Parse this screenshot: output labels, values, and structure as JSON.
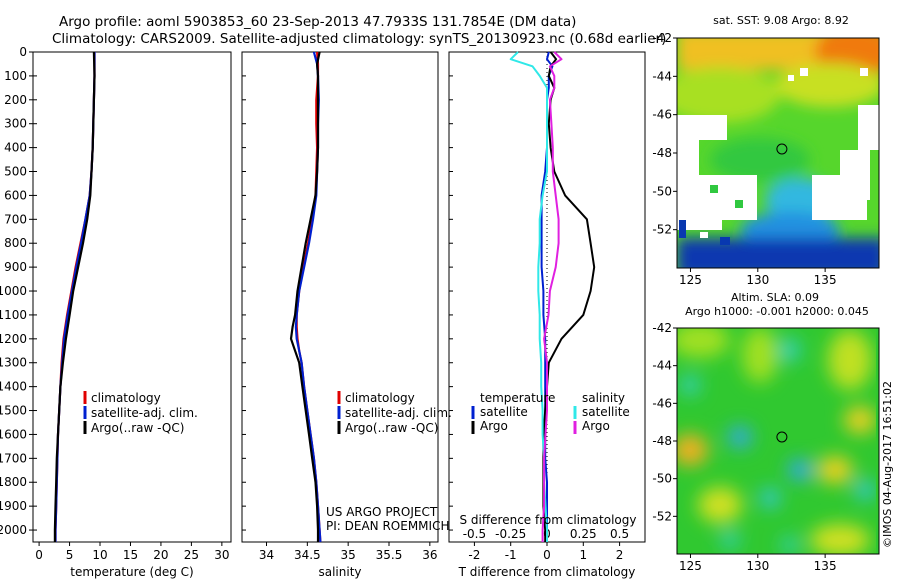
{
  "header": {
    "title_line1": "Argo profile: aoml 5903853_60 23-Sep-2013 47.7933S 131.7854E (DM data)",
    "title_line2": "Climatology: CARS2009. Satellite-adjusted climatology: synTS_20130923.nc (0.68d earlier)"
  },
  "colors": {
    "climatology": "#e00000",
    "satellite": "#0020d0",
    "argo": "#000000",
    "salinity_satellite": "#30e8e8",
    "salinity_argo": "#e020e0"
  },
  "credits": {
    "project": "US ARGO PROJECT",
    "pi": "PI: DEAN ROEMMICH",
    "stamp": "©IMOS 04-Aug-2017 16:51:02"
  },
  "legend": {
    "climatology": "climatology",
    "satellite_adj": "satellite-adj. clim.",
    "argo_raw": "Argo(..raw -QC)",
    "diff_temperature": "temperature",
    "diff_salinity": "salinity",
    "satellite": "satellite",
    "argo": "Argo"
  },
  "chart_data": [
    {
      "type": "line",
      "id": "temperature",
      "xlabel": "temperature (deg C)",
      "ylabel": "",
      "xlim": [
        -1,
        31.5
      ],
      "ylim": [
        2050,
        0
      ],
      "xticks": [
        0,
        5,
        10,
        15,
        20,
        25,
        30
      ],
      "yticks": [
        0,
        100,
        200,
        300,
        400,
        500,
        600,
        700,
        800,
        900,
        1000,
        1100,
        1200,
        1300,
        1400,
        1500,
        1600,
        1700,
        1800,
        1900,
        2000
      ],
      "depth": [
        0,
        100,
        200,
        300,
        400,
        500,
        600,
        700,
        800,
        900,
        1000,
        1100,
        1200,
        1300,
        1400,
        1500,
        1600,
        1700,
        1800,
        1900,
        2000,
        2050
      ],
      "series": [
        {
          "name": "climatology",
          "values": [
            9.1,
            9.1,
            9.0,
            8.9,
            8.8,
            8.6,
            8.3,
            7.6,
            6.8,
            6.0,
            5.3,
            4.6,
            4.0,
            3.7,
            3.5,
            3.3,
            3.1,
            3.0,
            2.9,
            2.8,
            2.7,
            2.7
          ]
        },
        {
          "name": "satellite-adj. clim.",
          "values": [
            9.1,
            9.1,
            9.0,
            8.9,
            8.8,
            8.6,
            8.3,
            7.6,
            6.9,
            6.1,
            5.4,
            4.7,
            4.1,
            3.8,
            3.5,
            3.3,
            3.1,
            3.0,
            2.9,
            2.8,
            2.7,
            2.7
          ]
        },
        {
          "name": "Argo(..raw -QC)",
          "values": [
            9.0,
            9.1,
            9.0,
            8.9,
            8.8,
            8.6,
            8.4,
            7.9,
            7.2,
            6.4,
            5.6,
            5.0,
            4.4,
            3.9,
            3.5,
            3.3,
            3.1,
            2.9,
            2.8,
            2.7,
            2.6,
            2.6
          ]
        }
      ]
    },
    {
      "type": "line",
      "id": "salinity",
      "xlabel": "salinity",
      "ylabel": "",
      "xlim": [
        33.7,
        36.1
      ],
      "ylim": [
        2050,
        0
      ],
      "xticks": [
        34,
        34.5,
        35,
        35.5,
        36
      ],
      "depth": [
        0,
        50,
        100,
        200,
        300,
        400,
        500,
        600,
        700,
        800,
        900,
        1000,
        1100,
        1150,
        1200,
        1250,
        1300,
        1400,
        1500,
        1600,
        1700,
        1800,
        1900,
        2000,
        2050
      ],
      "series": [
        {
          "name": "climatology",
          "values": [
            34.62,
            34.63,
            34.63,
            34.61,
            34.61,
            34.62,
            34.61,
            34.6,
            34.56,
            34.51,
            34.45,
            34.4,
            34.37,
            34.37,
            34.38,
            34.4,
            34.43,
            34.46,
            34.5,
            34.54,
            34.58,
            34.61,
            34.63,
            34.65,
            34.66
          ]
        },
        {
          "name": "satellite-adj. clim.",
          "values": [
            34.58,
            34.62,
            34.63,
            34.64,
            34.63,
            34.63,
            34.62,
            34.61,
            34.57,
            34.52,
            34.46,
            34.4,
            34.37,
            34.36,
            34.37,
            34.4,
            34.43,
            34.46,
            34.5,
            34.54,
            34.58,
            34.61,
            34.63,
            34.65,
            34.66
          ]
        },
        {
          "name": "Argo(..raw -QC)",
          "values": [
            34.65,
            34.62,
            34.63,
            34.63,
            34.63,
            34.63,
            34.62,
            34.6,
            34.54,
            34.48,
            34.43,
            34.38,
            34.35,
            34.32,
            34.3,
            34.35,
            34.4,
            34.44,
            34.48,
            34.52,
            34.56,
            34.6,
            34.62,
            34.63,
            34.63
          ]
        }
      ]
    },
    {
      "type": "line",
      "id": "difference",
      "xlabel": "T difference from climatology",
      "xlabel_top": "S difference from climatology",
      "ylabel": "",
      "xlim": [
        -2.7,
        2.7
      ],
      "ylim": [
        2050,
        0
      ],
      "xticks": [
        -2,
        -1,
        0,
        1,
        2
      ],
      "xticks_top": [
        -0.5,
        -0.25,
        0,
        0.25,
        0.5
      ],
      "xticklabels_top": [
        "-0.5",
        "-0.25",
        "0",
        "0.25",
        "0.5"
      ],
      "depth": [
        0,
        30,
        60,
        100,
        150,
        200,
        300,
        400,
        500,
        600,
        700,
        800,
        900,
        1000,
        1100,
        1200,
        1300,
        1400,
        1500,
        1600,
        1700,
        1800,
        1900,
        2000,
        2050
      ],
      "series": [
        {
          "name": "temperature satellite",
          "values": [
            0.05,
            0.0,
            0.15,
            0.05,
            0.05,
            0.0,
            0.0,
            0.0,
            -0.05,
            -0.15,
            -0.15,
            -0.15,
            -0.15,
            -0.1,
            -0.1,
            -0.05,
            -0.05,
            -0.05,
            -0.05,
            -0.05,
            -0.05,
            0.0,
            0.0,
            0.0,
            0.0
          ]
        },
        {
          "name": "temperature Argo",
          "values": [
            0.1,
            0.25,
            0.1,
            0.05,
            0.2,
            0.1,
            0.05,
            0.1,
            0.2,
            0.5,
            1.1,
            1.2,
            1.3,
            1.2,
            1.0,
            0.4,
            0.05,
            0.0,
            -0.05,
            -0.1,
            -0.1,
            -0.1,
            -0.1,
            -0.05,
            -0.05
          ]
        },
        {
          "name": "salinity satellite",
          "values": [
            -0.2,
            -0.25,
            -0.1,
            -0.05,
            0.0,
            0.0,
            0.0,
            0.0,
            0.0,
            -0.03,
            -0.05,
            -0.05,
            -0.06,
            -0.06,
            -0.05,
            -0.05,
            -0.04,
            -0.04,
            -0.03,
            -0.03,
            -0.02,
            -0.02,
            -0.01,
            0.0,
            0.0
          ]
        },
        {
          "name": "salinity Argo",
          "values": [
            0.05,
            0.1,
            0.02,
            0.05,
            0.05,
            0.02,
            0.03,
            0.04,
            0.04,
            0.06,
            0.08,
            0.08,
            0.06,
            0.02,
            0.01,
            -0.02,
            0.0,
            0.0,
            0.0,
            -0.01,
            -0.02,
            -0.02,
            -0.02,
            -0.03,
            -0.03
          ]
        }
      ]
    },
    {
      "type": "heatmap",
      "id": "sst_map",
      "title": "sat. SST: 9.08 Argo: 8.92",
      "xlim": [
        124,
        139
      ],
      "ylim": [
        -54,
        -42
      ],
      "xticks": [
        125,
        130,
        135
      ],
      "yticks": [
        -42,
        -44,
        -46,
        -48,
        -50,
        -52
      ],
      "marker": {
        "lon": 131.79,
        "lat": -47.79
      }
    },
    {
      "type": "heatmap",
      "id": "sla_map",
      "title": "Altim. SLA: 0.09",
      "subtitle": "Argo h1000: -0.001 h2000: 0.045",
      "xlim": [
        124,
        139
      ],
      "ylim": [
        -54,
        -42
      ],
      "xticks": [
        125,
        130,
        135
      ],
      "yticks": [
        -42,
        -44,
        -46,
        -48,
        -50,
        -52
      ],
      "marker": {
        "lon": 131.79,
        "lat": -47.79
      }
    }
  ]
}
